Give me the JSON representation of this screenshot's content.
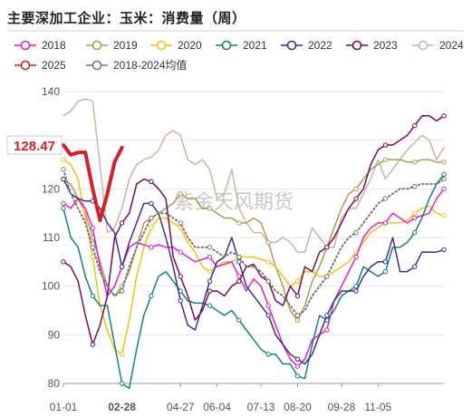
{
  "title": "主要深加工企业：玉米：消费量（周）",
  "watermark": "紫金天风期货",
  "colors": {
    "2018": "#e61ec8",
    "2019": "#b09a52",
    "2020": "#f5c20f",
    "2021": "#12827a",
    "2022": "#3b2f8f",
    "2023": "#7a0a52",
    "2024": "#c7b7a3",
    "2025": "#d62027",
    "2018-2024均值": "#777777"
  },
  "chart_data": {
    "type": "line",
    "title": "主要深加工企业：玉米：消费量（周）",
    "xlabel": "",
    "ylabel": "",
    "ylim": [
      80,
      140
    ],
    "yticks": [
      80,
      90,
      100,
      110,
      120,
      130,
      140
    ],
    "x_tick_labels": [
      "01-01",
      "02-28",
      "04-27",
      "06-04",
      "07-13",
      "08-20",
      "09-28",
      "11-05"
    ],
    "x_tick_weeks": [
      1,
      9,
      17,
      22,
      28,
      33,
      39,
      44
    ],
    "x_range": [
      1,
      53
    ],
    "grid": "horizontal",
    "legend_position": "top",
    "current_value_label": "128.47",
    "highlight_x_label": "02-28",
    "series": [
      {
        "name": "2018",
        "style": "line",
        "marker": "circle",
        "values": [
          117,
          116,
          118,
          116,
          112,
          104,
          98,
          100,
          104,
          108,
          109,
          108.5,
          108,
          108.5,
          108,
          108,
          107,
          106,
          105,
          105.5,
          106,
          104,
          104.5,
          105,
          102,
          99,
          101.5,
          100,
          96,
          92,
          88,
          85,
          83.5,
          85,
          89,
          90,
          91,
          97,
          100,
          103,
          106,
          110,
          112,
          113,
          113,
          115,
          114,
          113,
          114,
          114.5,
          115,
          118,
          120
        ]
      },
      {
        "name": "2019",
        "style": "line",
        "marker": "circle",
        "values": [
          122,
          121,
          118,
          115,
          110,
          105,
          100,
          98,
          100,
          103,
          108,
          113,
          114,
          115,
          116,
          117,
          119,
          118,
          118,
          116,
          116,
          115,
          114,
          114,
          113,
          113,
          114,
          113,
          109,
          104,
          100,
          95,
          93,
          96,
          101,
          104,
          108,
          112,
          116,
          119,
          120,
          122,
          124,
          125,
          126,
          126,
          126,
          125.5,
          125.5,
          126,
          126,
          125.5,
          125.5
        ]
      },
      {
        "name": "2020",
        "style": "line",
        "marker": "circle",
        "values": [
          126,
          125,
          122,
          114,
          106,
          96,
          91,
          87,
          86,
          93,
          102,
          108,
          112,
          114,
          114,
          113,
          112,
          109,
          107,
          104,
          103,
          104,
          105,
          105,
          106,
          106,
          106,
          105.5,
          105,
          104,
          102,
          100,
          101,
          103,
          103,
          102,
          102,
          103,
          104,
          105,
          107,
          109,
          111,
          112,
          113,
          113,
          113,
          113.5,
          115,
          116,
          116.5,
          115,
          114.5
        ]
      },
      {
        "name": "2021",
        "style": "line",
        "marker": "circle",
        "values": [
          116,
          110,
          108,
          102,
          98,
          96,
          96,
          88,
          80,
          79,
          87,
          94,
          98,
          102,
          103,
          101,
          99,
          97,
          96.5,
          96.5,
          96,
          95,
          94,
          95,
          93,
          91,
          89,
          87,
          86,
          86,
          84,
          84,
          81.5,
          81,
          88,
          94,
          93,
          95,
          98,
          99,
          100,
          104,
          103,
          102,
          103,
          108,
          108,
          109,
          111,
          114,
          118,
          121,
          123
        ]
      },
      {
        "name": "2022",
        "style": "line",
        "marker": "circle",
        "values": [
          122,
          119,
          118,
          117.5,
          117.5,
          116,
          113,
          111,
          104,
          109,
          113,
          117,
          117,
          115,
          110,
          104,
          97,
          92,
          91,
          96,
          101,
          105,
          106,
          110,
          105,
          100,
          98,
          96,
          94,
          90,
          88,
          86,
          85,
          84,
          86,
          90,
          94,
          97,
          99,
          99,
          99,
          102,
          104,
          105,
          105,
          110,
          103,
          103,
          104,
          107,
          107,
          107,
          107.5
        ]
      },
      {
        "name": "2023",
        "style": "line",
        "marker": "circle",
        "values": [
          105,
          104,
          101,
          94,
          88,
          92,
          98,
          110,
          113,
          115,
          121,
          122,
          121.5,
          120,
          118,
          106,
          102,
          98,
          93,
          95,
          99,
          99,
          98,
          100,
          101,
          104,
          104.5,
          102,
          101,
          97,
          96,
          100,
          98,
          104,
          103,
          107,
          108,
          110,
          113,
          116,
          118,
          120,
          125,
          128,
          129,
          129,
          130,
          131,
          133,
          135,
          135,
          134,
          135
        ]
      },
      {
        "name": "2024",
        "style": "line",
        "marker": "none",
        "values": [
          135,
          136,
          138,
          138.5,
          138,
          125,
          111,
          112,
          116,
          122,
          125,
          126,
          126.5,
          128,
          131,
          132,
          131,
          126,
          125,
          126,
          124,
          118,
          119,
          124,
          116,
          113,
          111,
          111,
          109,
          109,
          110,
          109,
          107,
          107,
          112,
          110,
          108,
          108,
          114,
          116,
          116,
          119,
          122,
          126,
          122,
          124,
          126,
          128,
          129.5,
          131,
          130,
          126,
          128.5
        ]
      },
      {
        "name": "2025",
        "style": "bold",
        "marker": "none",
        "values": [
          129,
          127,
          127.5,
          127.5,
          120,
          113.5,
          119,
          125.5,
          128.47
        ]
      },
      {
        "name": "2018-2024均值",
        "style": "dotted",
        "marker": "circle",
        "values": [
          124,
          119,
          116,
          113,
          108,
          103,
          100,
          98,
          99,
          104,
          108,
          111,
          114,
          115,
          115,
          114,
          113,
          110,
          108,
          108,
          108,
          107,
          106,
          107,
          106,
          104,
          104,
          103,
          101,
          99,
          98,
          96,
          94,
          95,
          98,
          100,
          102,
          105,
          108,
          110,
          111,
          113,
          115,
          117,
          118,
          119,
          120,
          120,
          120.5,
          121,
          121,
          121,
          122
        ]
      }
    ]
  }
}
